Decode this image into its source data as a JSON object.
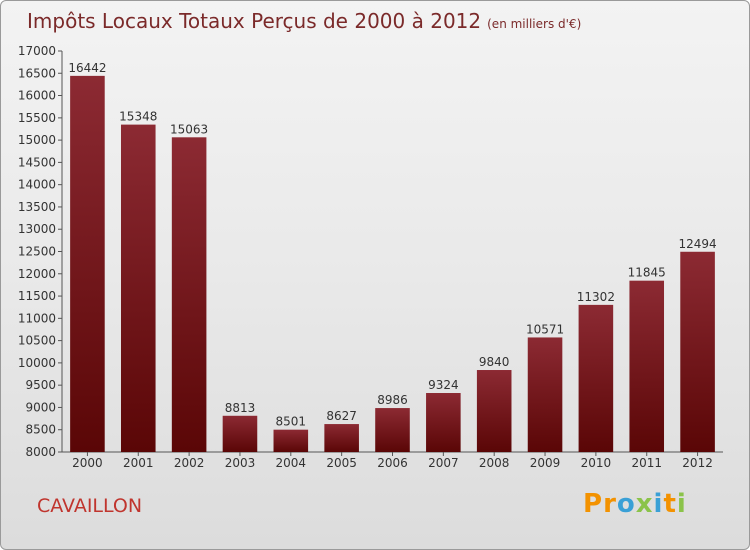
{
  "title": "Impôts Locaux Totaux Perçus de 2000 à 2012",
  "subtitle": "(en milliers d'€)",
  "city": "CAVAILLON",
  "logo": {
    "text": "Proxiti",
    "colors": [
      "#f39200",
      "#3aa0d6",
      "#8bc34a"
    ]
  },
  "chart_data": {
    "type": "bar",
    "categories": [
      "2000",
      "2001",
      "2002",
      "2003",
      "2004",
      "2005",
      "2006",
      "2007",
      "2008",
      "2009",
      "2010",
      "2011",
      "2012"
    ],
    "values": [
      16442,
      15348,
      15063,
      8813,
      8501,
      8627,
      8986,
      9324,
      9840,
      10571,
      11302,
      11845,
      12494
    ],
    "ylim": [
      8000,
      17000
    ],
    "ytick_step": 500,
    "grid": false,
    "bar_color_top": "#8c2a33",
    "bar_color_bottom": "#5a0606"
  }
}
